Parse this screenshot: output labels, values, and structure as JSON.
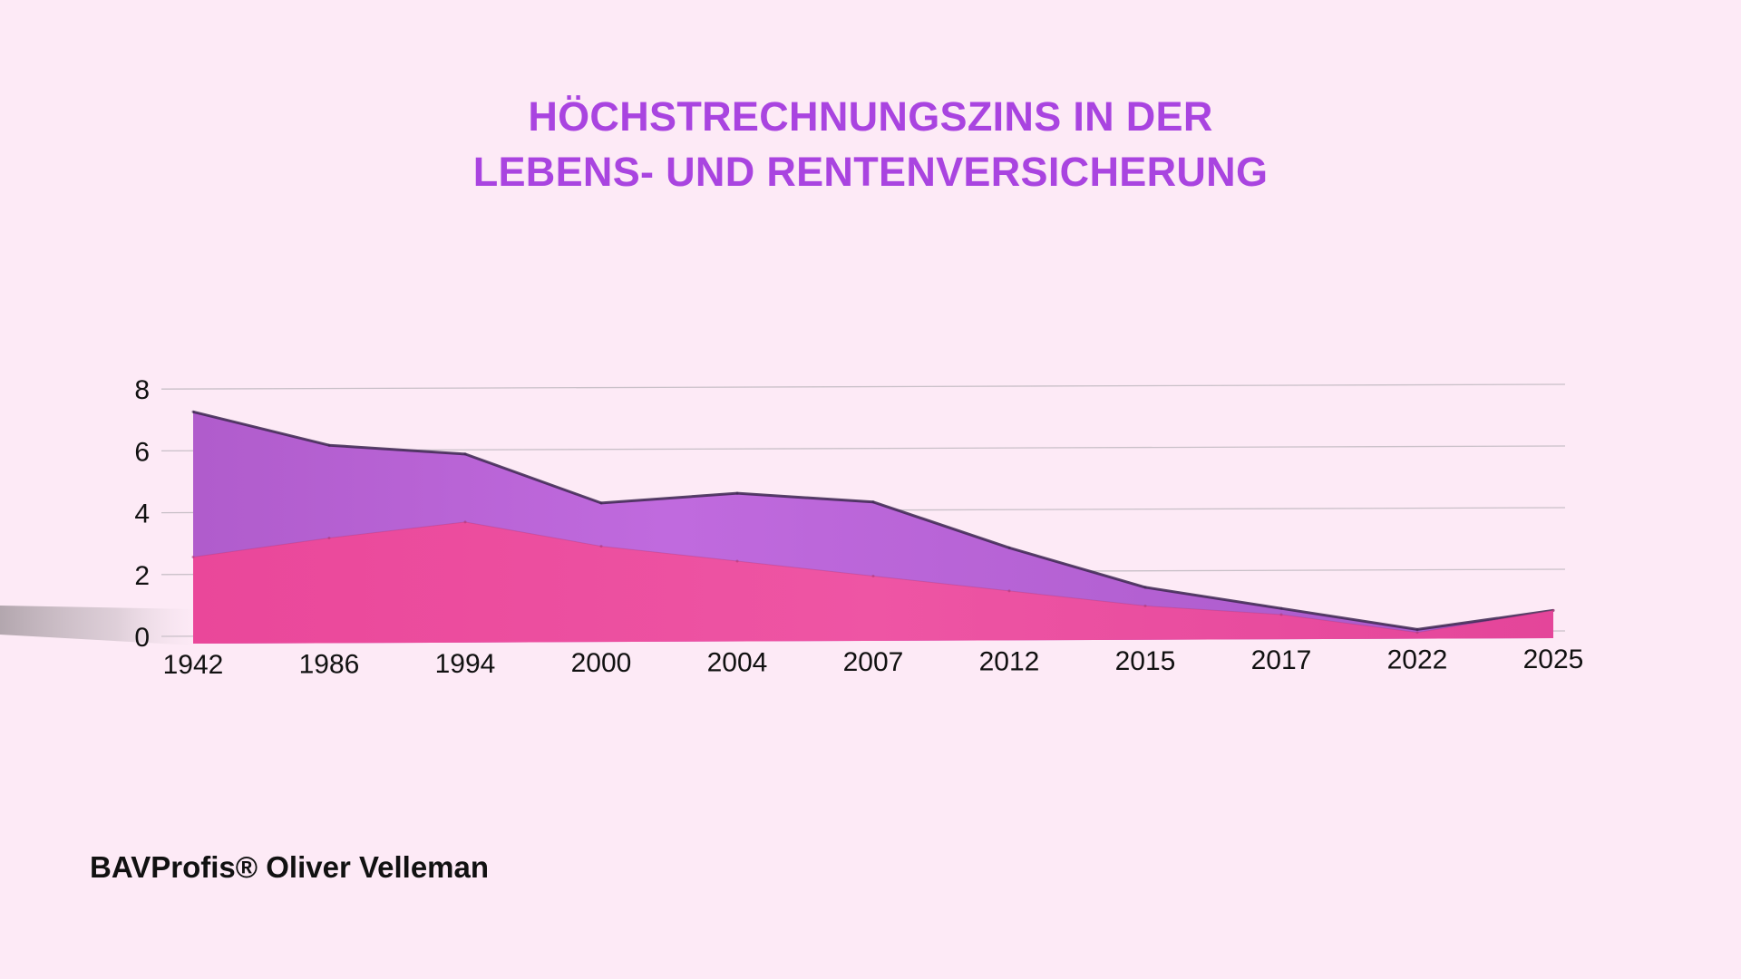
{
  "header": {
    "title_line1": "HÖCHSTRECHNUNGSZINS IN DER",
    "title_line2": "LEBENS- UND RENTENVERSICHERUNG"
  },
  "footer": {
    "credit": "BAVProfis® Oliver Velleman"
  },
  "colors": {
    "background": "#fdeaf6",
    "title": "#a944e0",
    "series_back": "#b86ad6",
    "series_front": "#ec4c9c",
    "grid": "#c9c0c8"
  },
  "chart_data": {
    "type": "area",
    "title": "HÖCHSTRECHNUNGSZINS IN DER LEBENS- UND RENTENVERSICHERUNG",
    "xlabel": "",
    "ylabel": "",
    "categories": [
      "1942",
      "1986",
      "1994",
      "2000",
      "2004",
      "2007",
      "2012",
      "2015",
      "2017",
      "2022",
      "2025"
    ],
    "ylim": [
      0,
      8
    ],
    "yticks": [
      "0",
      "2",
      "4",
      "6",
      "8"
    ],
    "grid": true,
    "legend": "none",
    "series": [
      {
        "values": [
          7.5,
          6.4,
          6.1,
          4.5,
          4.8,
          4.5,
          3.0,
          1.7,
          1.0,
          0.3,
          0.9
        ]
      },
      {
        "values": [
          2.8,
          3.4,
          3.9,
          3.1,
          2.6,
          2.1,
          1.6,
          1.1,
          0.8,
          0.2,
          0.9
        ]
      }
    ]
  }
}
